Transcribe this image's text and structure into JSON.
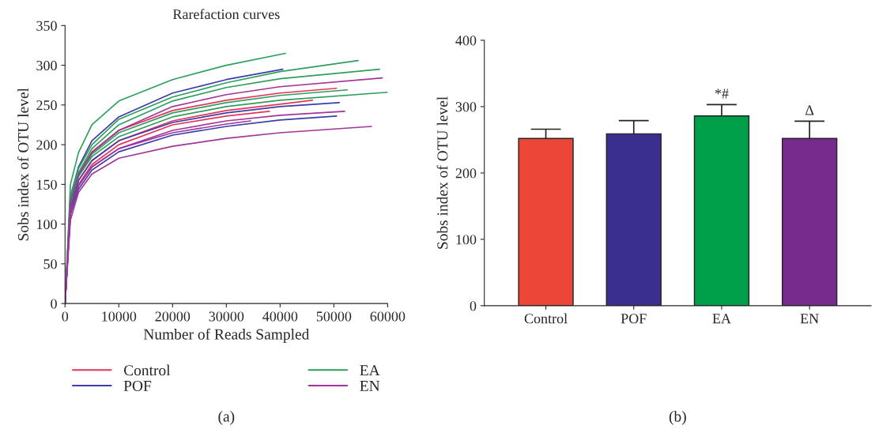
{
  "chart_data": [
    {
      "type": "line",
      "title": "Rarefaction curves",
      "xlabel": "Number of Reads Sampled",
      "ylabel": "Sobs index of OTU level",
      "xlim": [
        0,
        60000
      ],
      "xticks": [
        0,
        10000,
        20000,
        30000,
        40000,
        50000,
        60000
      ],
      "ylim": [
        0,
        350
      ],
      "yticks": [
        0,
        50,
        100,
        150,
        200,
        250,
        300,
        350
      ],
      "grid": false,
      "legend": "bottom",
      "marker": "none",
      "line_style": "solid",
      "series": [
        {
          "name": "Control",
          "color": "#e6335a",
          "x": [
            2500,
            5000,
            10000,
            20000,
            30000,
            40000,
            50500
          ],
          "values": [
            163,
            191,
            218,
            243,
            256,
            265,
            271
          ]
        },
        {
          "color": "#e6335a",
          "x": [
            0,
            1000,
            2500,
            5000,
            10000,
            20000,
            30000,
            40000,
            46000
          ],
          "values": [
            0,
            120,
            155,
            180,
            205,
            230,
            243,
            251,
            256
          ]
        },
        {
          "color": "#e6335a",
          "x": [
            0,
            1000,
            2500,
            5000,
            10000,
            20000,
            30000,
            38000
          ],
          "values": [
            0,
            118,
            150,
            175,
            200,
            225,
            236,
            242
          ]
        },
        {
          "name": "POF",
          "color": "#3c3ca8",
          "x": [
            0,
            1000,
            2500,
            5000,
            10000,
            20000,
            30000,
            40500
          ],
          "values": [
            0,
            135,
            172,
            205,
            235,
            265,
            282,
            295
          ]
        },
        {
          "color": "#3c3ca8",
          "x": [
            0,
            1000,
            2500,
            5000,
            10000,
            20000,
            30000,
            40000,
            51000
          ],
          "values": [
            0,
            120,
            155,
            180,
            205,
            228,
            240,
            248,
            253
          ]
        },
        {
          "color": "#3c3ca8",
          "x": [
            0,
            1000,
            2500,
            5000,
            10000,
            20000,
            30000,
            40000,
            50500
          ],
          "values": [
            0,
            112,
            144,
            168,
            191,
            212,
            223,
            231,
            236
          ]
        },
        {
          "name": "EA",
          "color": "#2e9e5e",
          "x": [
            0,
            1000,
            2500,
            5000,
            10000,
            20000,
            30000,
            41000
          ],
          "values": [
            0,
            150,
            190,
            225,
            255,
            282,
            300,
            315
          ]
        },
        {
          "color": "#2e9e5e",
          "x": [
            0,
            1000,
            2500,
            5000,
            10000,
            20000,
            30000,
            40000,
            54500
          ],
          "values": [
            0,
            135,
            170,
            200,
            232,
            260,
            278,
            292,
            306
          ]
        },
        {
          "color": "#2e9e5e",
          "x": [
            0,
            1000,
            2500,
            5000,
            10000,
            20000,
            30000,
            40000,
            58500
          ],
          "values": [
            0,
            130,
            165,
            195,
            225,
            255,
            272,
            283,
            295
          ]
        },
        {
          "color": "#2e9e5e",
          "x": [
            0,
            1000,
            2500,
            5000,
            10000,
            20000,
            30000,
            40000,
            52500
          ],
          "values": [
            0,
            125,
            160,
            188,
            215,
            240,
            253,
            262,
            269
          ]
        },
        {
          "color": "#2e9e5e",
          "x": [
            0,
            1000,
            2500,
            5000,
            10000,
            20000,
            30000,
            40000,
            60000
          ],
          "values": [
            0,
            125,
            160,
            185,
            210,
            235,
            248,
            256,
            266
          ]
        },
        {
          "name": "EN",
          "color": "#a0359a",
          "x": [
            0,
            1000,
            2500,
            5000,
            10000,
            20000,
            30000,
            40000,
            59000
          ],
          "values": [
            0,
            128,
            162,
            190,
            218,
            248,
            263,
            273,
            284
          ]
        },
        {
          "color": "#a0359a",
          "x": [
            0,
            1000,
            2500,
            5000,
            10000,
            20000,
            30000,
            40000,
            57000
          ],
          "values": [
            0,
            105,
            140,
            163,
            183,
            198,
            208,
            215,
            223
          ]
        },
        {
          "color": "#a0359a",
          "x": [
            0,
            1000,
            2500,
            5000,
            10000,
            20000,
            30000,
            40000,
            52000
          ],
          "values": [
            0,
            115,
            148,
            172,
            195,
            218,
            230,
            237,
            242
          ]
        },
        {
          "color": "#a0359a",
          "x": [
            0,
            1000,
            2500,
            5000,
            10000,
            20000,
            30000,
            34500
          ],
          "values": [
            0,
            115,
            148,
            172,
            195,
            215,
            226,
            230
          ]
        }
      ],
      "annotations": [
        "(a)"
      ]
    },
    {
      "type": "bar",
      "ylabel": "Sobs index of OTU level",
      "categories": [
        "Control",
        "POF",
        "EA",
        "EN"
      ],
      "values": [
        252,
        259,
        286,
        252
      ],
      "colors": [
        "#ec4638",
        "#3a2f8f",
        "#00a04a",
        "#772b8c"
      ],
      "errors": [
        [
          252,
          266
        ],
        [
          259,
          279
        ],
        [
          286,
          303
        ],
        [
          252,
          278
        ]
      ],
      "value_labels": [
        null,
        null,
        "*#",
        "Δ"
      ],
      "ylim": [
        0,
        400
      ],
      "yticks": [
        0,
        100,
        200,
        300,
        400
      ],
      "grid": false,
      "annotations": [
        "(b)"
      ]
    }
  ]
}
